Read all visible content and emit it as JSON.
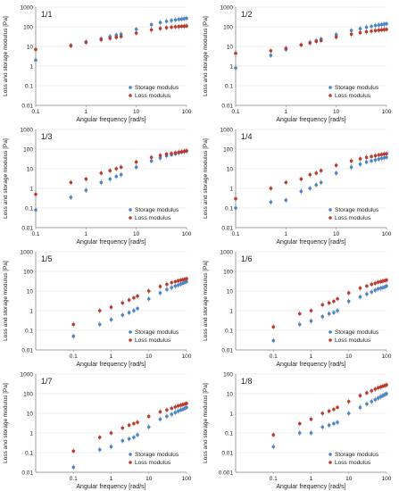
{
  "colors": {
    "storage": "#4a86c8",
    "loss": "#c0392b",
    "axis": "#888888",
    "grid": "#d9d9d9"
  },
  "chart_data": [
    {
      "type": "scatter",
      "title": "1/1",
      "xscale": "log",
      "yscale": "log",
      "xlim": [
        0.1,
        100
      ],
      "ylim": [
        0.01,
        1000
      ],
      "xlabel": "Angular frequency [rad/s]",
      "ylabel": "Loss and storage modulus [Pa]",
      "xticks": [
        "0.1",
        "1",
        "10",
        "100"
      ],
      "yticks": [
        "0.01",
        "0.1",
        "1",
        "10",
        "100",
        "1000"
      ],
      "legend_position": "bottom-right",
      "series": [
        {
          "name": "Storage modulus",
          "x": [
            0.1,
            0.5,
            1,
            2,
            3,
            4,
            5,
            10,
            20,
            30,
            40,
            50,
            60,
            70,
            80,
            90,
            100
          ],
          "y": [
            2,
            11,
            17,
            25,
            32,
            38,
            42,
            75,
            130,
            165,
            190,
            210,
            225,
            240,
            250,
            260,
            270
          ]
        },
        {
          "name": "Loss modulus",
          "x": [
            0.1,
            0.5,
            1,
            2,
            3,
            4,
            5,
            10,
            20,
            30,
            40,
            50,
            60,
            70,
            80,
            90,
            100
          ],
          "y": [
            7,
            11,
            16,
            22,
            26,
            29,
            32,
            48,
            70,
            82,
            90,
            96,
            100,
            103,
            106,
            108,
            110
          ]
        }
      ]
    },
    {
      "type": "scatter",
      "title": "1/2",
      "xscale": "log",
      "yscale": "log",
      "xlim": [
        0.1,
        100
      ],
      "ylim": [
        0.01,
        1000
      ],
      "xlabel": "Angular frequency [rad/s]",
      "ylabel": "Loss and storage modulus [Pa]",
      "xticks": [
        "0.1",
        "1",
        "10",
        "100"
      ],
      "yticks": [
        "0.01",
        "0.1",
        "1",
        "10",
        "100",
        "1000"
      ],
      "legend_position": "bottom-right",
      "series": [
        {
          "name": "Storage modulus",
          "x": [
            0.1,
            0.5,
            1,
            2,
            3,
            4,
            5,
            10,
            20,
            30,
            40,
            50,
            60,
            70,
            80,
            90,
            100
          ],
          "y": [
            0.8,
            3.5,
            7,
            12,
            16,
            20,
            24,
            40,
            65,
            80,
            95,
            105,
            115,
            122,
            130,
            136,
            142
          ]
        },
        {
          "name": "Loss modulus",
          "x": [
            0.1,
            0.5,
            1,
            2,
            3,
            4,
            5,
            10,
            20,
            30,
            40,
            50,
            60,
            70,
            80,
            90,
            100
          ],
          "y": [
            4.5,
            6,
            8,
            12,
            15,
            18,
            20,
            30,
            42,
            50,
            56,
            60,
            64,
            67,
            70,
            72,
            74
          ]
        }
      ]
    },
    {
      "type": "scatter",
      "title": "1/3",
      "xscale": "log",
      "yscale": "log",
      "xlim": [
        0.1,
        100
      ],
      "ylim": [
        0.01,
        1000
      ],
      "xlabel": "Angular frequency [rad/s]",
      "ylabel": "Loss and storage modulus [Pa]",
      "xticks": [
        "0.1",
        "1",
        "10",
        "100"
      ],
      "yticks": [
        "0.01",
        "0.1",
        "1",
        "10",
        "100",
        "1000"
      ],
      "legend_position": "bottom-right",
      "series": [
        {
          "name": "Storage modulus",
          "x": [
            0.1,
            0.5,
            1,
            2,
            3,
            4,
            5,
            10,
            20,
            30,
            40,
            50,
            60,
            70,
            80,
            90,
            100
          ],
          "y": [
            0.08,
            0.35,
            0.8,
            2,
            3,
            4,
            5,
            12,
            25,
            35,
            45,
            52,
            58,
            64,
            70,
            75,
            80
          ]
        },
        {
          "name": "Loss modulus",
          "x": [
            0.1,
            0.5,
            1,
            2,
            3,
            4,
            5,
            10,
            20,
            30,
            40,
            50,
            60,
            70,
            80,
            90,
            100
          ],
          "y": [
            0.5,
            2,
            3,
            6,
            8,
            10,
            12,
            22,
            38,
            48,
            55,
            60,
            65,
            70,
            74,
            78,
            82
          ]
        }
      ]
    },
    {
      "type": "scatter",
      "title": "1/4",
      "xscale": "log",
      "yscale": "log",
      "xlim": [
        0.1,
        100
      ],
      "ylim": [
        0.01,
        1000
      ],
      "xlabel": "Angular frequency [rad/s]",
      "ylabel": "Loss and storage modulus [Pa]",
      "xticks": [
        "0.1",
        "1",
        "10",
        "100"
      ],
      "yticks": [
        "0.01",
        "0.1",
        "1",
        "10",
        "100",
        "1000"
      ],
      "legend_position": "bottom-right",
      "series": [
        {
          "name": "Storage modulus",
          "x": [
            0.1,
            0.5,
            1,
            2,
            3,
            4,
            5,
            10,
            20,
            30,
            40,
            50,
            60,
            70,
            80,
            90,
            100
          ],
          "y": [
            0.1,
            0.2,
            0.25,
            0.7,
            1,
            1.5,
            2,
            6,
            12,
            17,
            22,
            25,
            28,
            31,
            34,
            36,
            38
          ]
        },
        {
          "name": "Loss modulus",
          "x": [
            0.1,
            0.5,
            1,
            2,
            3,
            4,
            5,
            10,
            20,
            30,
            40,
            50,
            60,
            70,
            80,
            90,
            100
          ],
          "y": [
            0.3,
            1,
            2,
            3,
            5,
            6,
            8,
            15,
            25,
            32,
            38,
            42,
            46,
            50,
            53,
            56,
            58
          ]
        }
      ]
    },
    {
      "type": "scatter",
      "title": "1/5",
      "xscale": "log",
      "yscale": "log",
      "xlim": [
        0.01,
        100
      ],
      "ylim": [
        0.01,
        1000
      ],
      "xlabel": "Angular frequency [rad/s]",
      "ylabel": "Loss and storage modulus [Pa]",
      "xticks": [
        "0.1",
        "1",
        "10",
        "100"
      ],
      "yticks": [
        "0.01",
        "0.1",
        "1",
        "10",
        "100",
        "1000"
      ],
      "legend_position": "bottom-right",
      "series": [
        {
          "name": "Storage modulus",
          "x": [
            0.1,
            0.5,
            1,
            2,
            3,
            4,
            5,
            10,
            20,
            30,
            40,
            50,
            60,
            70,
            80,
            90,
            100
          ],
          "y": [
            0.05,
            0.2,
            0.35,
            0.6,
            0.8,
            1,
            1.3,
            4,
            8,
            12,
            15,
            18,
            20,
            23,
            25,
            28,
            30
          ]
        },
        {
          "name": "Loss modulus",
          "x": [
            0.1,
            0.5,
            1,
            2,
            3,
            4,
            5,
            10,
            20,
            30,
            40,
            50,
            60,
            70,
            80,
            90,
            100
          ],
          "y": [
            0.2,
            1,
            1.5,
            2.5,
            3.5,
            4.5,
            5.5,
            10,
            17,
            22,
            27,
            30,
            33,
            36,
            38,
            40,
            42
          ]
        }
      ]
    },
    {
      "type": "scatter",
      "title": "1/6",
      "xscale": "log",
      "yscale": "log",
      "xlim": [
        0.01,
        100
      ],
      "ylim": [
        0.01,
        1000
      ],
      "xlabel": "Angular frequency [rad/s]",
      "ylabel": "Loss and storage modulus [Pa]",
      "xticks": [
        "0.1",
        "1",
        "10",
        "100"
      ],
      "yticks": [
        "0.01",
        "0.1",
        "1",
        "10",
        "100",
        "1000"
      ],
      "legend_position": "bottom-right",
      "series": [
        {
          "name": "Storage modulus",
          "x": [
            0.1,
            0.5,
            1,
            2,
            3,
            4,
            5,
            10,
            20,
            30,
            40,
            50,
            60,
            70,
            80,
            90,
            100
          ],
          "y": [
            0.03,
            0.2,
            0.3,
            0.5,
            0.7,
            0.8,
            1,
            3,
            5,
            7,
            9,
            11,
            13,
            14,
            15,
            16,
            18
          ]
        },
        {
          "name": "Loss modulus",
          "x": [
            0.1,
            0.5,
            1,
            2,
            3,
            4,
            5,
            10,
            20,
            30,
            40,
            50,
            60,
            70,
            80,
            90,
            100
          ],
          "y": [
            0.15,
            0.7,
            1,
            2,
            2.5,
            3,
            4,
            8,
            14,
            18,
            22,
            25,
            28,
            30,
            32,
            34,
            36
          ]
        }
      ]
    },
    {
      "type": "scatter",
      "title": "1/7",
      "xscale": "log",
      "yscale": "log",
      "xlim": [
        0.01,
        100
      ],
      "ylim": [
        0.01,
        1000
      ],
      "xlabel": "Angular frequency [rad/s]",
      "ylabel": "Loss and storage modulus [Pa]",
      "xticks": [
        "0.1",
        "1",
        "10",
        "100"
      ],
      "yticks": [
        "0.01",
        "0.1",
        "1",
        "10",
        "100",
        "1000"
      ],
      "legend_position": "bottom-right",
      "series": [
        {
          "name": "Storage modulus",
          "x": [
            0.1,
            0.5,
            1,
            2,
            3,
            4,
            5,
            10,
            20,
            30,
            40,
            50,
            60,
            70,
            80,
            90,
            100
          ],
          "y": [
            0.018,
            0.14,
            0.2,
            0.4,
            0.5,
            0.6,
            0.8,
            2,
            5,
            7,
            9,
            11,
            13,
            15,
            16,
            18,
            20
          ]
        },
        {
          "name": "Loss modulus",
          "x": [
            0.1,
            0.5,
            1,
            2,
            3,
            4,
            5,
            10,
            20,
            30,
            40,
            50,
            60,
            70,
            80,
            90,
            100
          ],
          "y": [
            0.12,
            0.6,
            1,
            1.8,
            2.5,
            3,
            3.5,
            7,
            12,
            15,
            18,
            21,
            24,
            26,
            28,
            30,
            32
          ]
        }
      ]
    },
    {
      "type": "scatter",
      "title": "1/8",
      "xscale": "log",
      "yscale": "log",
      "xlim": [
        0.01,
        100
      ],
      "ylim": [
        0.001,
        100
      ],
      "xlabel": "Angular frequency [rad/s]",
      "ylabel": "Loss and storage modulus [Pa]",
      "xticks": [
        "0.1",
        "1",
        "10",
        "100"
      ],
      "yticks": [
        "0.001",
        "0.01",
        "0.1",
        "1",
        "10",
        "100"
      ],
      "legend_position": "bottom-right",
      "series": [
        {
          "name": "Storage modulus",
          "x": [
            0.1,
            0.5,
            1,
            2,
            3,
            4,
            5,
            10,
            20,
            30,
            40,
            50,
            60,
            70,
            80,
            90,
            100
          ],
          "y": [
            0.02,
            0.1,
            0.1,
            0.2,
            0.25,
            0.3,
            0.35,
            1,
            2,
            3,
            4,
            5,
            6,
            7,
            8,
            9,
            10
          ]
        },
        {
          "name": "Loss modulus",
          "x": [
            0.1,
            0.5,
            1,
            2,
            3,
            4,
            5,
            10,
            20,
            30,
            40,
            50,
            60,
            70,
            80,
            90,
            100
          ],
          "y": [
            0.08,
            0.3,
            0.5,
            1,
            1.3,
            1.6,
            2,
            4,
            8,
            11,
            14,
            17,
            20,
            22,
            24,
            26,
            28
          ]
        }
      ]
    }
  ]
}
